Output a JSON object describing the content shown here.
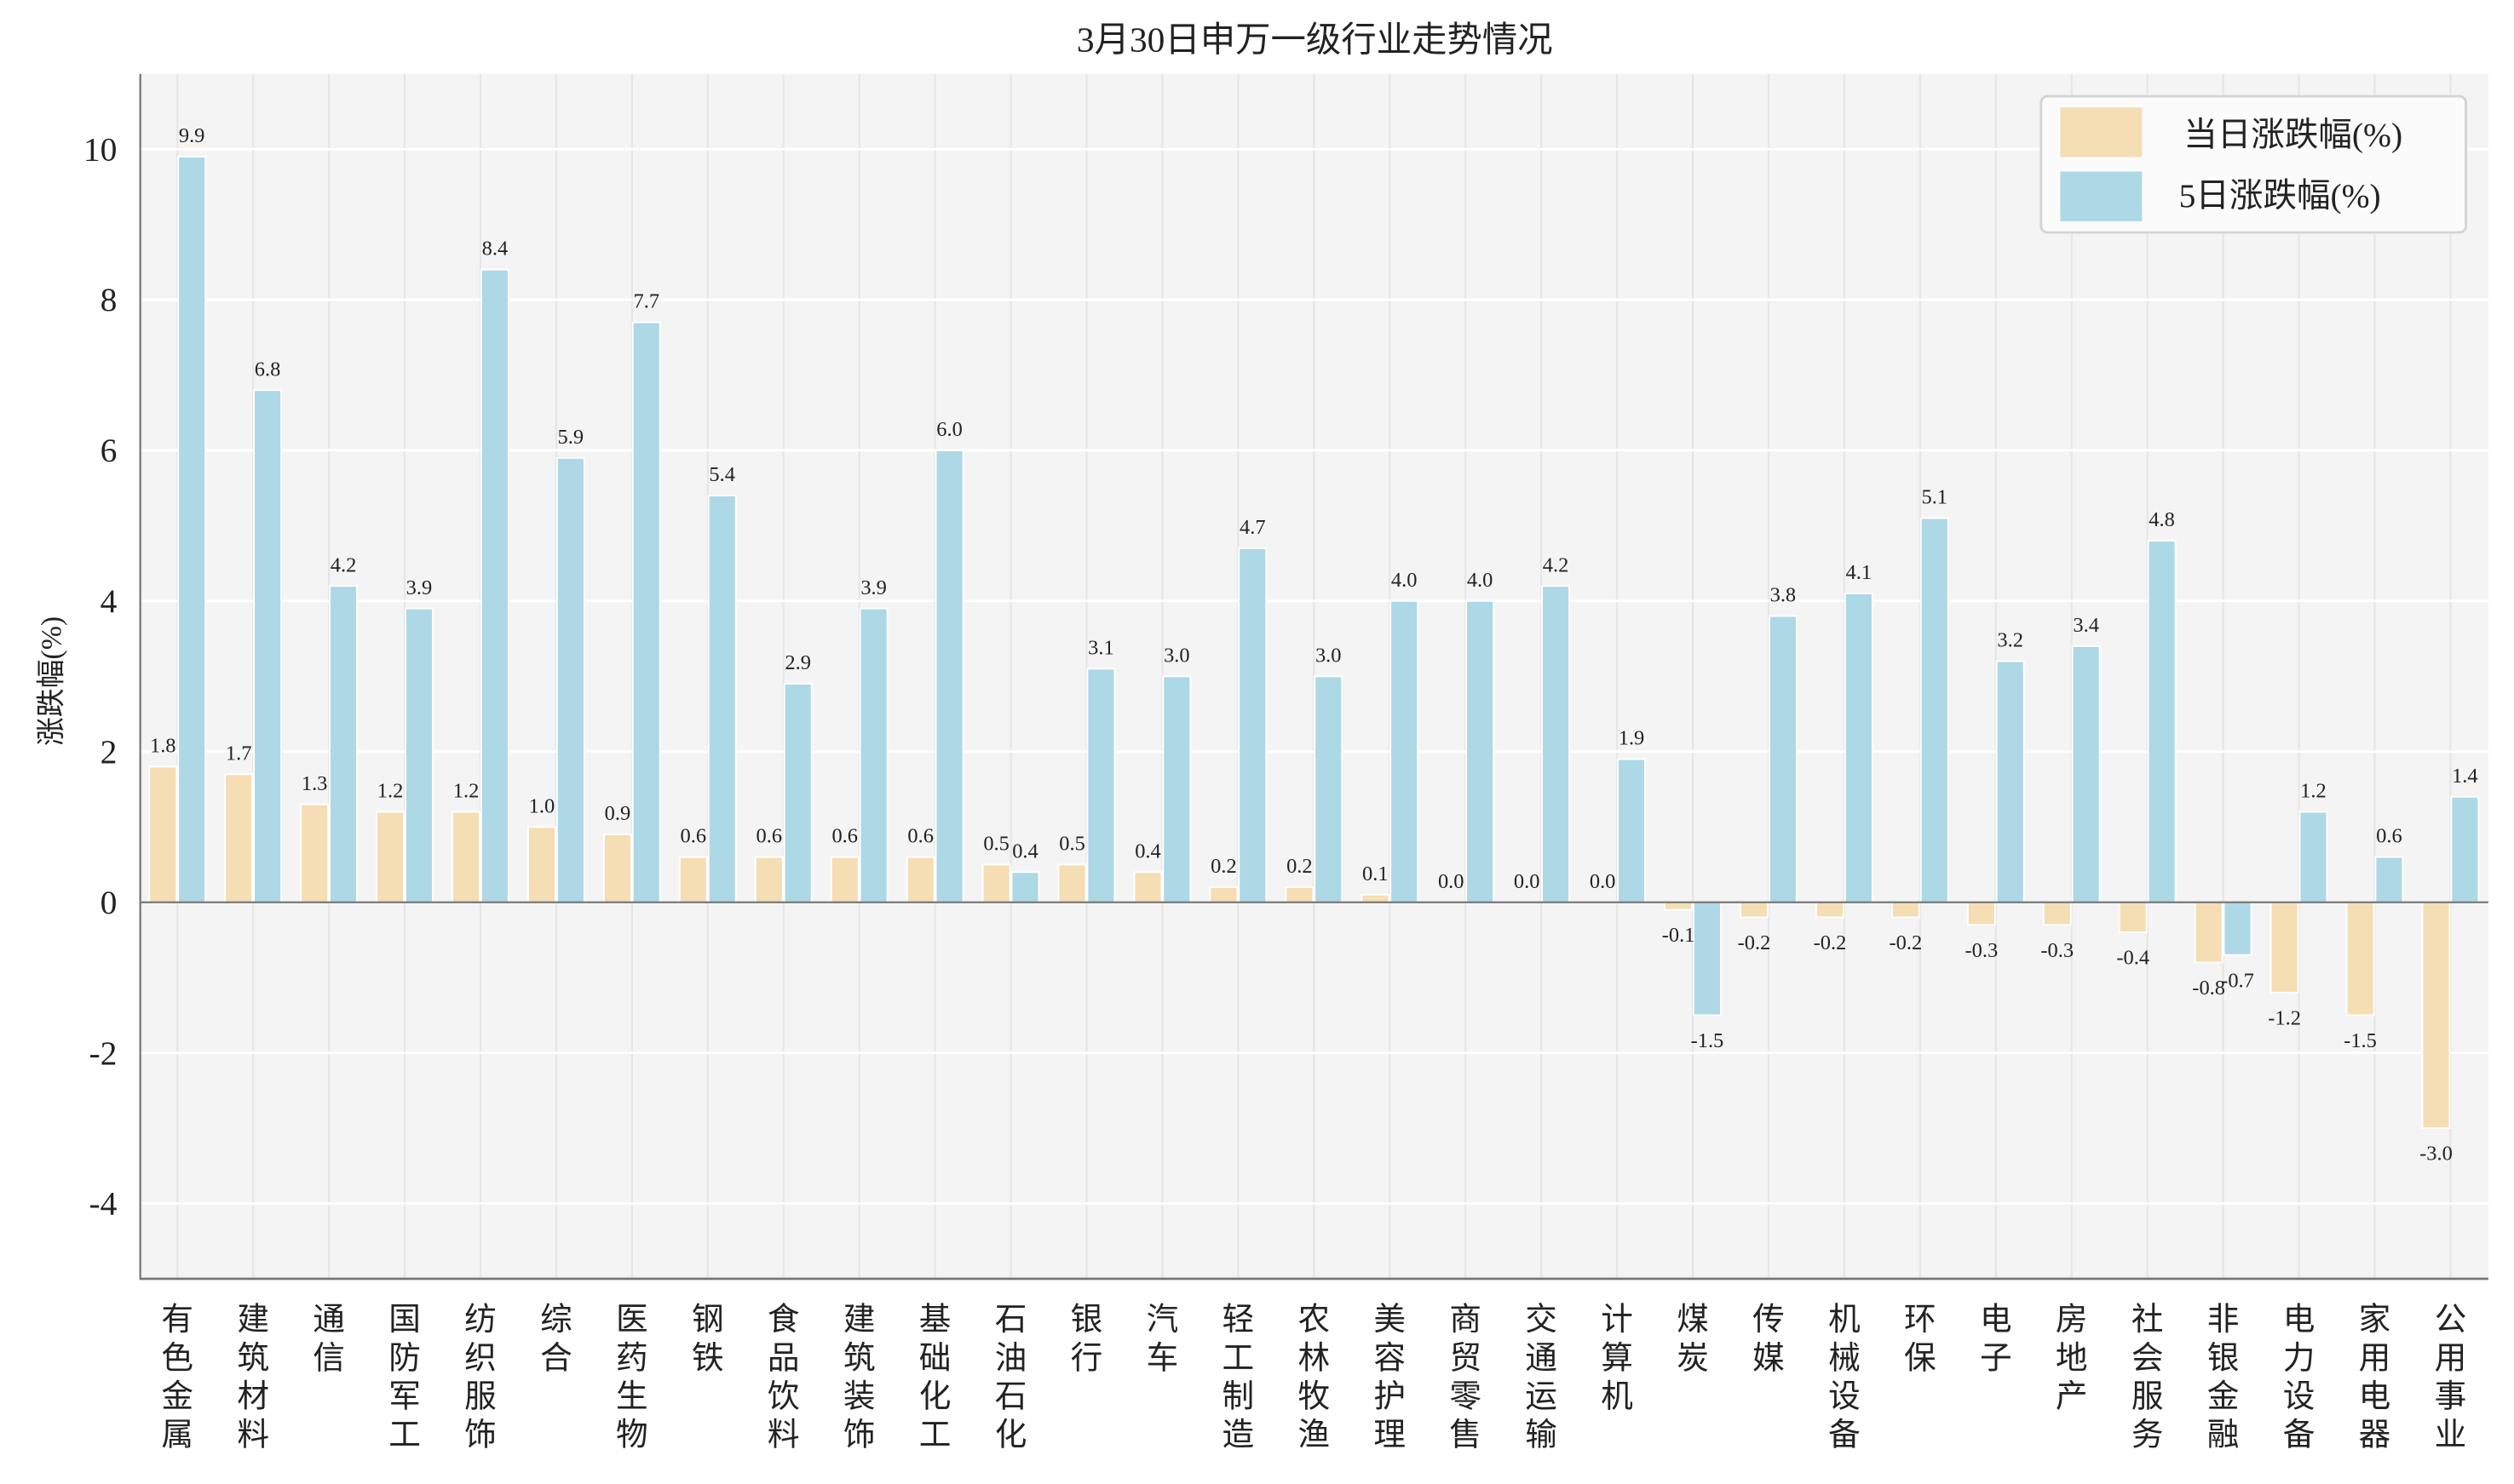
{
  "chart_data": {
    "type": "bar",
    "title": "3月30日申万一级行业走势情况",
    "xlabel": "",
    "ylabel": "涨跌幅(%)",
    "ylim": [
      -5,
      11
    ],
    "yticks": [
      -4,
      -2,
      0,
      2,
      4,
      6,
      8,
      10
    ],
    "grid": true,
    "legend_position": "top-right",
    "categories": [
      "有色金属",
      "建筑材料",
      "通信",
      "国防军工",
      "纺织服饰",
      "综合",
      "医药生物",
      "钢铁",
      "食品饮料",
      "建筑装饰",
      "基础化工",
      "石油石化",
      "银行",
      "汽车",
      "轻工制造",
      "农林牧渔",
      "美容护理",
      "商贸零售",
      "交通运输",
      "计算机",
      "煤炭",
      "传媒",
      "机械设备",
      "环保",
      "电子",
      "房地产",
      "社会服务",
      "非银金融",
      "电力设备",
      "家用电器",
      "公用事业"
    ],
    "series": [
      {
        "name": "当日涨跌幅(%)",
        "color": "#F5DEB3",
        "values": [
          1.8,
          1.7,
          1.3,
          1.2,
          1.2,
          1.0,
          0.9,
          0.6,
          0.6,
          0.6,
          0.6,
          0.5,
          0.5,
          0.4,
          0.2,
          0.2,
          0.1,
          0.0,
          0.0,
          0.0,
          -0.1,
          -0.2,
          -0.2,
          -0.2,
          -0.3,
          -0.3,
          -0.4,
          -0.8,
          -1.2,
          -1.5,
          -3.0
        ]
      },
      {
        "name": "5日涨跌幅(%)",
        "color": "#ADD8E6",
        "values": [
          9.9,
          6.8,
          4.2,
          3.9,
          8.4,
          5.9,
          7.7,
          5.4,
          2.9,
          3.9,
          6.0,
          0.4,
          3.1,
          3.0,
          4.7,
          3.0,
          4.0,
          4.0,
          4.2,
          1.9,
          -1.5,
          3.8,
          4.1,
          5.1,
          3.2,
          3.4,
          4.8,
          -0.7,
          1.2,
          0.6,
          1.4
        ]
      }
    ]
  }
}
